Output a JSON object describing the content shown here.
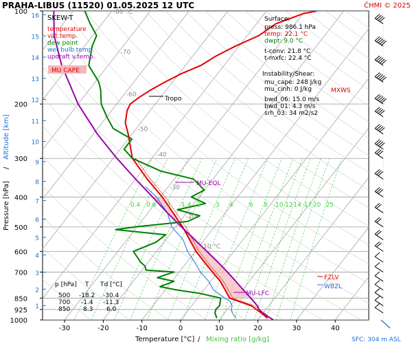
{
  "header": {
    "title": "PRAHA-LIBUS (11520)   01.05.2025 12 UTC",
    "copyright": "ČHMI © 2025"
  },
  "colors": {
    "temperature": "#e00000",
    "virt_temperature": "#e00000",
    "dew_point": "#008000",
    "wet_bulb": "#1a6fd8",
    "updraft": "#9a00b0",
    "grid": "#9a9a9a",
    "mixing_ratio": "#44cc44",
    "mu_cape_fill": "#f4b8b8"
  },
  "legend": {
    "title": "SKEW-T",
    "items": [
      {
        "label": "temperature",
        "color": "#e00000"
      },
      {
        "label": "virt.temp.",
        "color": "#e00000"
      },
      {
        "label": "dew point",
        "color": "#008000"
      },
      {
        "label": "wet bulb temp.",
        "color": "#1a6fd8"
      },
      {
        "label": "updraft v.temp.",
        "color": "#9a00b0"
      }
    ],
    "mu_cape_label": "MU CAPE"
  },
  "surface_box": {
    "heading": "Surface:",
    "press": "press: 986.1 hPa",
    "temp": "temp: 22.1 °C",
    "dwpt": "dwpt: 9.0 °C",
    "tconv": "t-conv: 21.8 °C",
    "tmxfc": "t-mxfc: 22.4 °C",
    "inst_heading": "Instability/Shear:",
    "mu_cape": "mu_cape: 248 J/kg",
    "mu_cinh": "mu_cinh: 0 J/kg",
    "bwd06": "bwd_06: 15.0 m/s",
    "bwd01": "bwd_01: 4.3 m/s",
    "srh03": "srh_03: 34 m2/s2"
  },
  "levels_table": {
    "headers": [
      "p [hPa]",
      "T",
      "Td [°C]"
    ],
    "rows": [
      [
        "500",
        "-18.2",
        "-30.4"
      ],
      [
        "700",
        "-1.4",
        "-11.3"
      ],
      [
        "850",
        "8.3",
        "6.0"
      ]
    ]
  },
  "annotations": {
    "tropo": "Tropo",
    "mu_eql": "MU-EQL",
    "mu_lfc": "MU-LFC",
    "fzlv": "FZLV",
    "wbzl": "WBZL",
    "mxws": "MXWS",
    "sfc": "SFC: 304 m ASL"
  },
  "chart_data": {
    "type": "skew-t",
    "xlabel": "Temperature [°C]",
    "xlabel_extra": "Mixing ratio [g/kg]",
    "ylabel": "Pressure [hPa]",
    "ylabel_extra": "Altitude [km]",
    "x_ticks": [
      -30,
      -20,
      -10,
      0,
      10,
      20,
      30,
      40
    ],
    "p_ticks": [
      100,
      200,
      300,
      400,
      500,
      600,
      700,
      850,
      925,
      1000
    ],
    "alt_ticks_km": [
      1,
      2,
      3,
      4,
      5,
      6,
      7,
      8,
      9,
      10,
      11,
      12,
      13,
      14,
      15,
      16
    ],
    "isotherm_labels": [
      -80,
      -70,
      -60,
      -50,
      -40,
      -30,
      -20,
      -10
    ],
    "mixing_ratio_labels": [
      "0.4",
      "0.6",
      "1",
      "1.4",
      "2",
      "3",
      "4",
      "6",
      "8",
      "10",
      "12",
      "14",
      "17",
      "20",
      "25"
    ],
    "series": [
      {
        "name": "temperature",
        "color": "#e00000",
        "points": [
          [
            986,
            22.1
          ],
          [
            950,
            19.5
          ],
          [
            925,
            17.5
          ],
          [
            900,
            15.5
          ],
          [
            850,
            8.3
          ],
          [
            800,
            5.5
          ],
          [
            750,
            2.5
          ],
          [
            700,
            -1.4
          ],
          [
            650,
            -5.5
          ],
          [
            600,
            -9.8
          ],
          [
            550,
            -13.8
          ],
          [
            500,
            -18.2
          ],
          [
            450,
            -23.5
          ],
          [
            400,
            -29.5
          ],
          [
            350,
            -37
          ],
          [
            300,
            -45
          ],
          [
            250,
            -51
          ],
          [
            230,
            -54
          ],
          [
            210,
            -56
          ],
          [
            200,
            -56.5
          ],
          [
            190,
            -55.5
          ],
          [
            180,
            -54
          ],
          [
            170,
            -52
          ],
          [
            160,
            -49.5
          ],
          [
            150,
            -46
          ],
          [
            140,
            -44
          ],
          [
            130,
            -41
          ],
          [
            120,
            -37
          ],
          [
            110,
            -35
          ],
          [
            102,
            -30
          ],
          [
            100,
            -27
          ]
        ]
      },
      {
        "name": "dew point",
        "color": "#008000",
        "points": [
          [
            986,
            9.0
          ],
          [
            950,
            7.5
          ],
          [
            925,
            7.0
          ],
          [
            900,
            7.2
          ],
          [
            870,
            6.5
          ],
          [
            850,
            6.0
          ],
          [
            820,
            -0.5
          ],
          [
            800,
            -7
          ],
          [
            780,
            -12
          ],
          [
            750,
            -9.5
          ],
          [
            730,
            -14.5
          ],
          [
            710,
            -12.5
          ],
          [
            700,
            -11.3
          ],
          [
            690,
            -19
          ],
          [
            670,
            -20
          ],
          [
            650,
            -22
          ],
          [
            600,
            -26
          ],
          [
            560,
            -22
          ],
          [
            530,
            -21
          ],
          [
            510,
            -35
          ],
          [
            500,
            -30.4
          ],
          [
            480,
            -18
          ],
          [
            460,
            -16
          ],
          [
            440,
            -23
          ],
          [
            420,
            -17
          ],
          [
            400,
            -22
          ],
          [
            380,
            -20
          ],
          [
            350,
            -25
          ],
          [
            330,
            -35
          ],
          [
            300,
            -45
          ],
          [
            280,
            -49
          ],
          [
            260,
            -49
          ],
          [
            240,
            -56
          ],
          [
            220,
            -60
          ],
          [
            200,
            -64
          ],
          [
            180,
            -67
          ],
          [
            170,
            -69
          ],
          [
            150,
            -75
          ],
          [
            130,
            -78
          ],
          [
            120,
            -79
          ],
          [
            110,
            -83
          ],
          [
            100,
            -87
          ]
        ]
      },
      {
        "name": "wet bulb temp.",
        "color": "#1a6fd8",
        "points": [
          [
            986,
            14.0
          ],
          [
            950,
            12.0
          ],
          [
            925,
            11.0
          ],
          [
            900,
            10.5
          ],
          [
            870,
            9.0
          ],
          [
            850,
            7.0
          ],
          [
            800,
            2.5
          ],
          [
            750,
            -0.5
          ],
          [
            700,
            -4.5
          ],
          [
            650,
            -8
          ],
          [
            600,
            -12
          ],
          [
            550,
            -15.5
          ],
          [
            500,
            -21
          ],
          [
            450,
            -25
          ],
          [
            400,
            -31
          ],
          [
            370,
            -36
          ]
        ]
      },
      {
        "name": "updraft v.temp.",
        "color": "#9a00b0",
        "points": [
          [
            1000,
            24
          ],
          [
            950,
            19.8
          ],
          [
            925,
            18.2
          ],
          [
            900,
            17.0
          ],
          [
            850,
            13.8
          ],
          [
            800,
            10.2
          ],
          [
            750,
            6.5
          ],
          [
            700,
            2.5
          ],
          [
            650,
            -2
          ],
          [
            600,
            -7
          ],
          [
            550,
            -12.5
          ],
          [
            500,
            -18.5
          ],
          [
            450,
            -25
          ],
          [
            400,
            -32
          ],
          [
            350,
            -40
          ],
          [
            300,
            -49
          ],
          [
            250,
            -59
          ],
          [
            200,
            -70
          ],
          [
            150,
            -82
          ],
          [
            120,
            -90
          ],
          [
            100,
            -95
          ]
        ]
      }
    ],
    "mixing_ratio_lines_gkg": [
      0.4,
      0.6,
      1,
      1.4,
      2,
      3,
      4,
      6,
      8,
      10,
      12,
      14,
      17,
      20,
      25
    ],
    "wind_profile": "right-side wind barbs column"
  }
}
